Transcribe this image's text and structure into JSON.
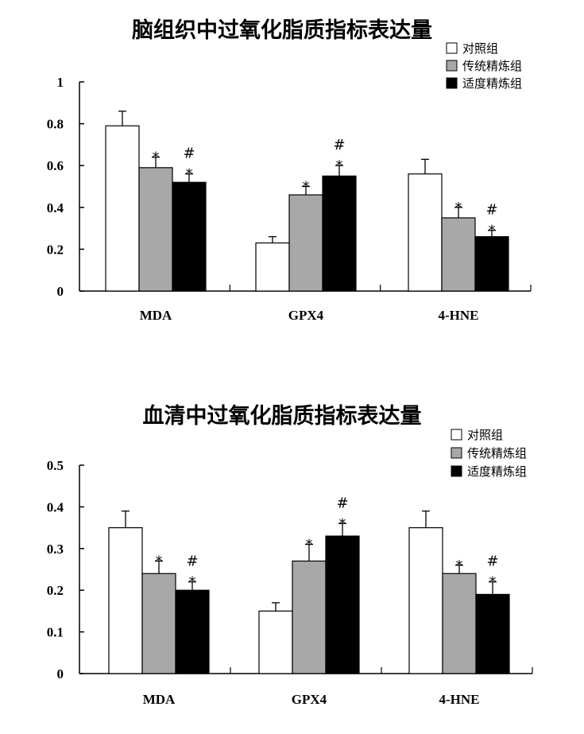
{
  "chart_data": [
    {
      "type": "bar",
      "title": "脑组织中过氧化脂质指标表达量",
      "categories": [
        "MDA",
        "GPX4",
        "4-HNE"
      ],
      "ylim": [
        0,
        1
      ],
      "yticks": [
        "0",
        "0.2",
        "0.4",
        "0.6",
        "0.8",
        "1"
      ],
      "legend_position": "top-right",
      "series": [
        {
          "name": "对照组",
          "fill": "#ffffff",
          "values": [
            0.79,
            0.23,
            0.56
          ],
          "errors": [
            0.07,
            0.03,
            0.07
          ],
          "marks": [
            "",
            "",
            ""
          ]
        },
        {
          "name": "传统精炼组",
          "fill": "#a8a8a8",
          "values": [
            0.59,
            0.46,
            0.35
          ],
          "errors": [
            0.05,
            0.04,
            0.05
          ],
          "marks": [
            "*",
            "*",
            "*"
          ]
        },
        {
          "name": "适度精炼组",
          "fill": "#000000",
          "values": [
            0.52,
            0.55,
            0.26
          ],
          "errors": [
            0.04,
            0.05,
            0.03
          ],
          "marks": [
            "#*",
            "#*",
            "#*"
          ]
        }
      ]
    },
    {
      "type": "bar",
      "title": "血清中过氧化脂质指标表达量",
      "categories": [
        "MDA",
        "GPX4",
        "4-HNE"
      ],
      "ylim": [
        0,
        0.5
      ],
      "yticks": [
        "0",
        "0.1",
        "0.2",
        "0.3",
        "0.4",
        "0.5"
      ],
      "legend_position": "top-right",
      "series": [
        {
          "name": "对照组",
          "fill": "#ffffff",
          "values": [
            0.35,
            0.15,
            0.35
          ],
          "errors": [
            0.04,
            0.02,
            0.04
          ],
          "marks": [
            "",
            "",
            ""
          ]
        },
        {
          "name": "传统精炼组",
          "fill": "#a8a8a8",
          "values": [
            0.24,
            0.27,
            0.24
          ],
          "errors": [
            0.03,
            0.04,
            0.02
          ],
          "marks": [
            "*",
            "*",
            "*"
          ]
        },
        {
          "name": "适度精炼组",
          "fill": "#000000",
          "values": [
            0.2,
            0.33,
            0.19
          ],
          "errors": [
            0.02,
            0.03,
            0.03
          ],
          "marks": [
            "#*",
            "#*",
            "#*"
          ]
        }
      ]
    }
  ]
}
